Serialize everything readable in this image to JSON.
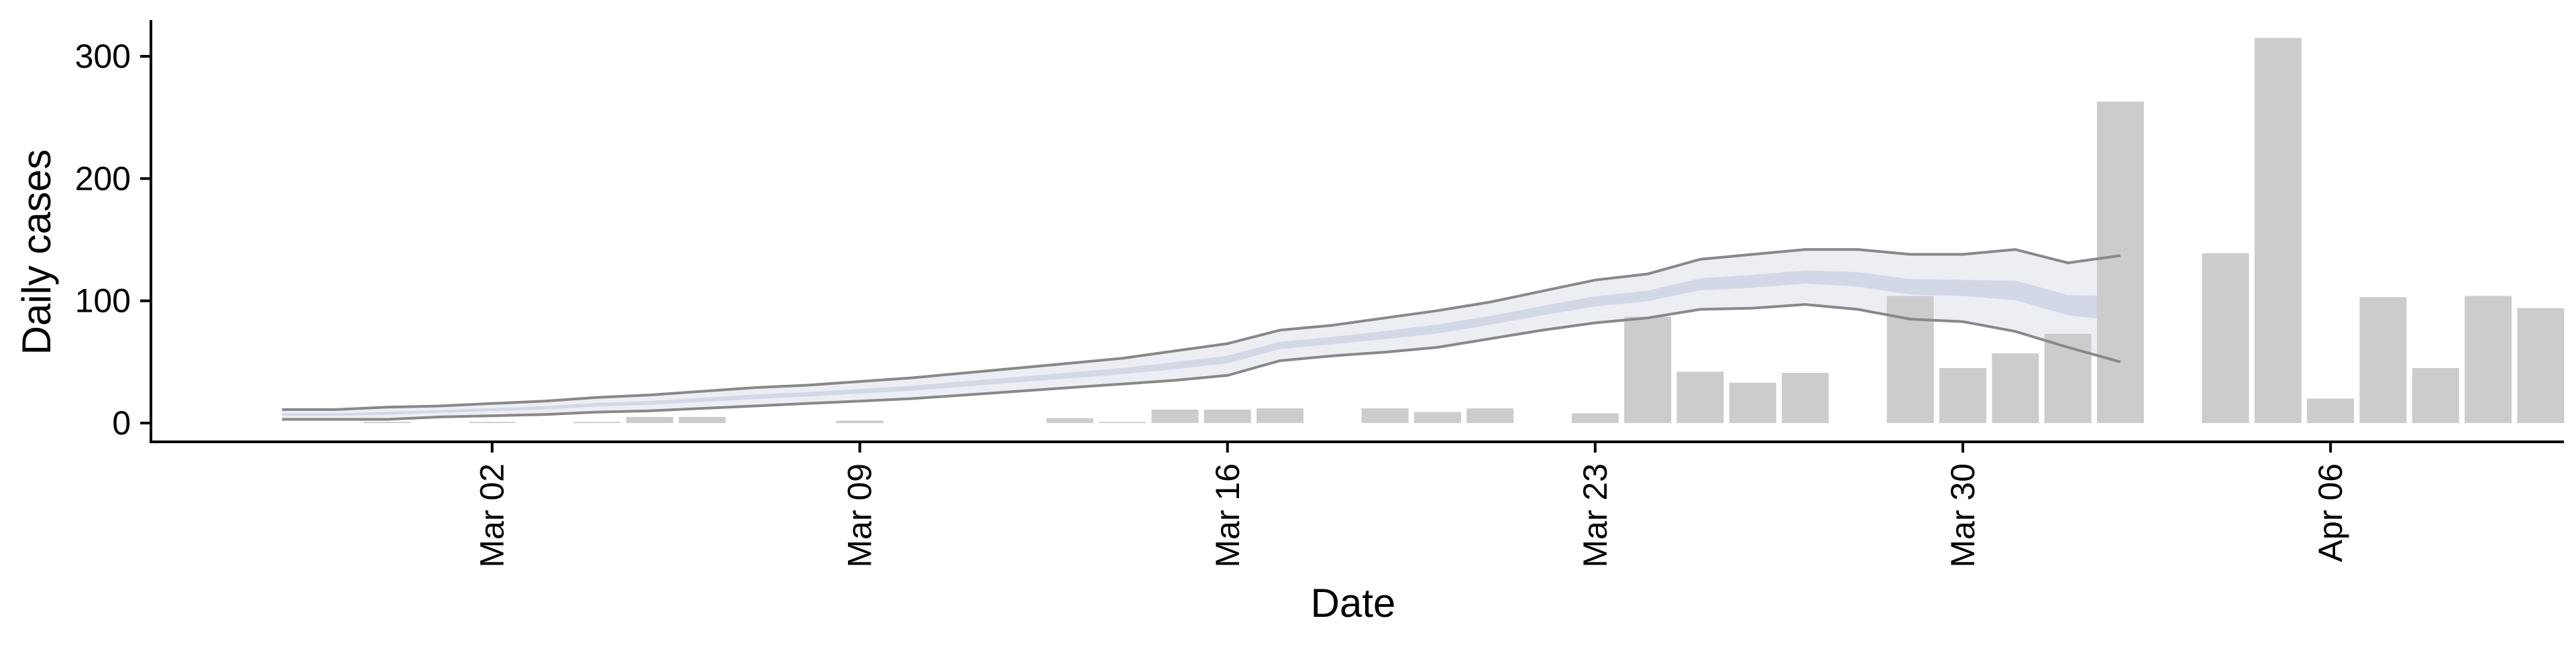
{
  "chart_data": {
    "type": "bar",
    "xlabel": "Date",
    "ylabel": "Daily cases",
    "ylim": [
      -15,
      330
    ],
    "x_range": [
      "2020-02-25",
      "2020-04-10"
    ],
    "y_ticks": [
      0,
      100,
      200,
      300
    ],
    "x_ticks": [
      {
        "date": "2020-03-02",
        "label": "Mar 02"
      },
      {
        "date": "2020-03-09",
        "label": "Mar 09"
      },
      {
        "date": "2020-03-16",
        "label": "Mar 16"
      },
      {
        "date": "2020-03-23",
        "label": "Mar 23"
      },
      {
        "date": "2020-03-30",
        "label": "Mar 30"
      },
      {
        "date": "2020-04-06",
        "label": "Apr 06"
      }
    ],
    "colors": {
      "bars": "#cccccc",
      "bound_lines": "#888888",
      "outer_band": "#edeef4",
      "inner_band": "#d3d8e6"
    },
    "series": [
      {
        "type": "bar",
        "x": [
          "2020-02-29",
          "2020-03-02",
          "2020-03-04",
          "2020-03-05",
          "2020-03-06",
          "2020-03-09",
          "2020-03-13",
          "2020-03-14",
          "2020-03-15",
          "2020-03-16",
          "2020-03-17",
          "2020-03-19",
          "2020-03-20",
          "2020-03-21",
          "2020-03-23",
          "2020-03-24",
          "2020-03-25",
          "2020-03-26",
          "2020-03-27",
          "2020-03-29",
          "2020-03-30",
          "2020-03-31",
          "2020-04-01",
          "2020-04-02",
          "2020-04-04",
          "2020-04-05",
          "2020-04-06",
          "2020-04-07",
          "2020-04-08",
          "2020-04-09",
          "2020-04-10"
        ],
        "values": [
          1,
          1,
          1,
          5,
          5,
          2,
          4,
          1,
          11,
          11,
          12,
          12,
          9,
          12,
          8,
          87,
          42,
          33,
          41,
          104,
          45,
          57,
          73,
          263,
          139,
          315,
          20,
          103,
          45,
          104,
          94
        ]
      },
      {
        "type": "line",
        "x": [
          "2020-02-27",
          "2020-02-28",
          "2020-02-29",
          "2020-03-01",
          "2020-03-02",
          "2020-03-03",
          "2020-03-04",
          "2020-03-05",
          "2020-03-06",
          "2020-03-07",
          "2020-03-08",
          "2020-03-09",
          "2020-03-10",
          "2020-03-11",
          "2020-03-12",
          "2020-03-13",
          "2020-03-14",
          "2020-03-15",
          "2020-03-16",
          "2020-03-17",
          "2020-03-18",
          "2020-03-19",
          "2020-03-20",
          "2020-03-21",
          "2020-03-22",
          "2020-03-23",
          "2020-03-24",
          "2020-03-25",
          "2020-03-26",
          "2020-03-27",
          "2020-03-28",
          "2020-03-29",
          "2020-03-30",
          "2020-03-31",
          "2020-04-01",
          "2020-04-02"
        ],
        "upper": [
          11,
          11,
          13,
          14,
          16,
          18,
          21,
          23,
          26,
          29,
          31,
          34,
          37,
          41,
          45,
          49,
          53,
          59,
          65,
          76,
          80,
          86,
          92,
          99,
          108,
          117,
          122,
          134,
          138,
          142,
          142,
          138,
          138,
          142,
          131,
          137
        ],
        "lower": [
          3,
          3,
          3,
          5,
          6,
          7,
          9,
          10,
          12,
          14,
          16,
          18,
          20,
          23,
          26,
          29,
          32,
          35,
          39,
          51,
          55,
          58,
          62,
          69,
          76,
          82,
          86,
          93,
          94,
          97,
          93,
          85,
          83,
          75,
          62,
          50
        ],
        "mid": [
          7,
          7,
          8,
          9.5,
          11,
          12.5,
          15,
          16.5,
          19,
          21.5,
          23.5,
          26,
          28.5,
          32,
          35.5,
          39,
          42.5,
          47,
          52,
          63.5,
          67.5,
          72,
          77,
          84,
          92,
          99.5,
          104,
          113.5,
          116,
          119.5,
          117.5,
          111.5,
          110.5,
          108.5,
          96.5,
          93.5
        ]
      }
    ]
  }
}
